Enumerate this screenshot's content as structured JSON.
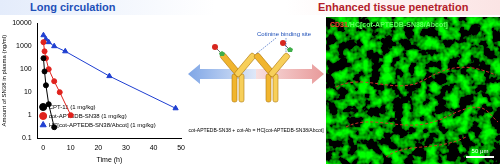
{
  "header": {
    "left": "Long circulation",
    "right": "Enhanced tissue penetration"
  },
  "chart_data": {
    "type": "line",
    "x_label": "Time (h)",
    "y_label": "Amount of SN38 in plasma (ng/ml)",
    "xlim": [
      -2,
      50
    ],
    "xticks": [
      0,
      10,
      20,
      30,
      40,
      50
    ],
    "ylim": [
      0.1,
      10000
    ],
    "yticks": [
      0.1,
      1,
      10,
      100,
      1000,
      10000
    ],
    "log": "y",
    "grid": false,
    "legend": "upper right",
    "series": [
      {
        "name": "CPT-11 (1 mg/kg)",
        "color": "#000000",
        "marker": "circle",
        "line_style": "solid",
        "x": [
          0.1,
          0.5,
          1,
          2,
          4
        ],
        "values": [
          300,
          80,
          20,
          3,
          0.3
        ]
      },
      {
        "name": "cot-APTEDB-SN38 (1 mg/kg)",
        "color": "#e0221d",
        "marker": "circle",
        "line_style": "solid",
        "x": [
          0.1,
          0.5,
          1,
          2,
          4,
          6,
          10
        ],
        "values": [
          1500,
          600,
          300,
          100,
          30,
          10,
          1
        ]
      },
      {
        "name": "HC[cot-APTEDB-SN38/Abcot] (1 mg/kg)",
        "color": "#1f3fd1",
        "marker": "triangle",
        "line_style": "solid",
        "x": [
          0.1,
          1,
          2,
          4,
          8,
          24,
          48
        ],
        "values": [
          3000,
          2000,
          1500,
          1000,
          600,
          50,
          2
        ]
      }
    ]
  },
  "diagram": {
    "binding_site_label": "Cotinine binding site",
    "formula": [
      "cot-APTEDB-SN38",
      "+",
      "cot-Ab",
      "=",
      "HC[cot-APTEDB-SN38/Abcot]"
    ]
  },
  "image": {
    "stain_red": "CD31",
    "stain_green": "/HC[cot-APTEDB-SN38/Abcot]",
    "scale_bar": "50 μm"
  }
}
